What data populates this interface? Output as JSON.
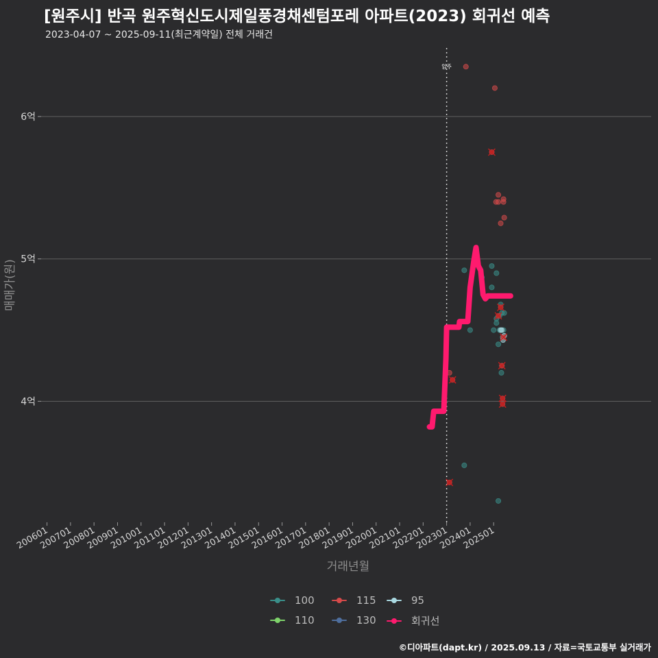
{
  "header": {
    "title": "[원주시] 반곡 원주혁신도시제일풍경채센텀포레 아파트(2023) 회귀선 예측",
    "subtitle": "2023-04-07 ~ 2025-09-11(최근계약일) 전체 거래건"
  },
  "caption": "©디아파트(dapt.kr) / 2025.09.13 / 자료=국토교통부 실거래가",
  "colors": {
    "background": "#2b2b2d",
    "gridline": "#5f5f5f",
    "regression": "#ff1a6e",
    "cross": "#c81e1e",
    "s100": "#3a8f8a",
    "s110": "#7fd46b",
    "s115": "#d64a4a",
    "s130": "#4f6f9e",
    "s95": "#a9d8e0"
  },
  "legend": [
    {
      "label": "100",
      "color": "#3a8f8a"
    },
    {
      "label": "115",
      "color": "#d64a4a"
    },
    {
      "label": "95",
      "color": "#a9d8e0"
    },
    {
      "label": "110",
      "color": "#7fd46b"
    },
    {
      "label": "130",
      "color": "#4f6f9e"
    },
    {
      "label": "회귀선",
      "color": "#ff1a6e"
    }
  ],
  "chart_data": {
    "type": "scatter",
    "title": "[원주시] 반곡 원주혁신도시제일풍경채센텀포레 아파트(2023) 회귀선 예측",
    "xlabel": "거래년월",
    "ylabel": "매매가(원)",
    "x_unit": "years (decimal)",
    "y_unit": "억원",
    "xlim": [
      2005.75,
      2031.7
    ],
    "ylim": [
      3.15,
      6.52
    ],
    "x_ticks": [
      {
        "value": 2006,
        "label": "200601"
      },
      {
        "value": 2007,
        "label": "200701"
      },
      {
        "value": 2008,
        "label": "200801"
      },
      {
        "value": 2009,
        "label": "200901"
      },
      {
        "value": 2010,
        "label": "201001"
      },
      {
        "value": 2011,
        "label": "201101"
      },
      {
        "value": 2012,
        "label": "201201"
      },
      {
        "value": 2013,
        "label": "201301"
      },
      {
        "value": 2014,
        "label": "201401"
      },
      {
        "value": 2015,
        "label": "201501"
      },
      {
        "value": 2016,
        "label": "201601"
      },
      {
        "value": 2017,
        "label": "201701"
      },
      {
        "value": 2018,
        "label": "201801"
      },
      {
        "value": 2019,
        "label": "201901"
      },
      {
        "value": 2020,
        "label": "202001"
      },
      {
        "value": 2021,
        "label": "202101"
      },
      {
        "value": 2022,
        "label": "202201"
      },
      {
        "value": 2023,
        "label": "202301"
      },
      {
        "value": 2024,
        "label": "202401"
      },
      {
        "value": 2025,
        "label": "202501"
      }
    ],
    "y_ticks": [
      {
        "value": 4,
        "label": "4억"
      },
      {
        "value": 5,
        "label": "5억"
      },
      {
        "value": 6,
        "label": "6억"
      }
    ],
    "grid": "horizontal",
    "annotation": {
      "x": 2023.0,
      "label": "입주"
    },
    "series": [
      {
        "name": "100",
        "color": "#3a8f8a",
        "points": [
          [
            2023.75,
            4.92
          ],
          [
            2024.0,
            4.5
          ],
          [
            2024.5,
            4.87
          ],
          [
            2024.92,
            4.95
          ],
          [
            2024.92,
            4.8
          ],
          [
            2025.0,
            4.5
          ],
          [
            2025.12,
            4.9
          ],
          [
            2025.12,
            4.58
          ],
          [
            2025.2,
            4.4
          ],
          [
            2025.25,
            4.5
          ],
          [
            2025.3,
            4.68
          ],
          [
            2025.35,
            4.62
          ],
          [
            2025.38,
            4.45
          ],
          [
            2025.42,
            4.5
          ],
          [
            2025.45,
            4.62
          ],
          [
            2025.25,
            4.6
          ],
          [
            2025.12,
            4.55
          ],
          [
            2025.33,
            4.2
          ],
          [
            2025.35,
            4.25
          ],
          [
            2023.75,
            3.55
          ],
          [
            2025.2,
            3.3
          ]
        ]
      },
      {
        "name": "110",
        "color": "#7fd46b",
        "points": []
      },
      {
        "name": "115",
        "color": "#d64a4a",
        "points": [
          [
            2023.82,
            6.35
          ],
          [
            2025.05,
            6.2
          ],
          [
            2024.92,
            5.75
          ],
          [
            2025.2,
            5.45
          ],
          [
            2025.1,
            5.4
          ],
          [
            2025.2,
            5.4
          ],
          [
            2025.42,
            5.42
          ],
          [
            2025.42,
            5.4
          ],
          [
            2025.45,
            5.29
          ],
          [
            2025.3,
            5.25
          ],
          [
            2023.12,
            4.2
          ],
          [
            2023.25,
            4.15
          ],
          [
            2023.12,
            3.43
          ],
          [
            2025.2,
            4.6
          ],
          [
            2025.3,
            4.66
          ],
          [
            2025.35,
            4.25
          ],
          [
            2025.38,
            4.02
          ],
          [
            2025.38,
            3.98
          ],
          [
            2025.4,
            4.45
          ]
        ]
      },
      {
        "name": "130",
        "color": "#4f6f9e",
        "points": []
      },
      {
        "name": "95",
        "color": "#a9d8e0",
        "points": [
          [
            2025.3,
            4.5
          ],
          [
            2025.35,
            4.5
          ],
          [
            2025.4,
            4.43
          ],
          [
            2025.45,
            4.46
          ]
        ]
      }
    ],
    "outliers": [
      [
        2024.92,
        5.75
      ],
      [
        2023.25,
        4.15
      ],
      [
        2023.12,
        3.43
      ],
      [
        2025.2,
        4.6
      ],
      [
        2025.3,
        4.66
      ],
      [
        2025.35,
        4.25
      ],
      [
        2025.38,
        4.02
      ],
      [
        2025.38,
        3.98
      ],
      [
        2025.42,
        4.45
      ]
    ],
    "regression": {
      "name": "회귀선",
      "color": "#ff1a6e",
      "points": [
        [
          2022.27,
          3.82
        ],
        [
          2022.38,
          3.82
        ],
        [
          2022.45,
          3.93
        ],
        [
          2022.55,
          3.93
        ],
        [
          2022.62,
          3.93
        ],
        [
          2022.88,
          3.93
        ],
        [
          2022.97,
          4.3
        ],
        [
          2023.0,
          4.52
        ],
        [
          2023.08,
          4.52
        ],
        [
          2023.52,
          4.52
        ],
        [
          2023.55,
          4.56
        ],
        [
          2023.9,
          4.56
        ],
        [
          2024.0,
          4.8
        ],
        [
          2024.15,
          4.98
        ],
        [
          2024.25,
          5.08
        ],
        [
          2024.35,
          4.95
        ],
        [
          2024.45,
          4.92
        ],
        [
          2024.55,
          4.75
        ],
        [
          2024.65,
          4.72
        ],
        [
          2024.75,
          4.74
        ],
        [
          2025.0,
          4.74
        ],
        [
          2025.5,
          4.74
        ],
        [
          2025.72,
          4.74
        ]
      ]
    }
  }
}
